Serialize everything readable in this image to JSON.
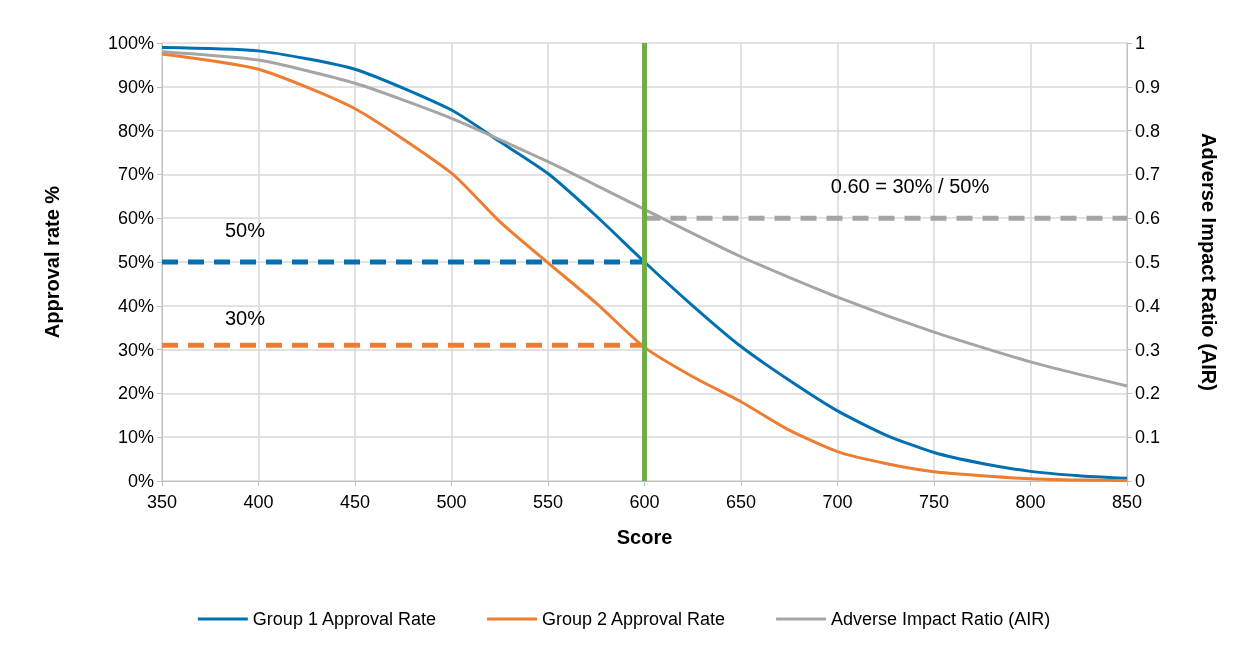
{
  "chart_data": {
    "type": "line",
    "xlabel": "Score",
    "ylabel": "Approval rate %",
    "y2label": "Adverse Impact Ratio (AIR)",
    "xlim": [
      350,
      850
    ],
    "xticks": [
      350,
      400,
      450,
      500,
      550,
      600,
      650,
      700,
      750,
      800,
      850
    ],
    "ylim": [
      0,
      100
    ],
    "yticks": [
      {
        "value": 0,
        "label": "0%"
      },
      {
        "value": 10,
        "label": "10%"
      },
      {
        "value": 20,
        "label": "20%"
      },
      {
        "value": 30,
        "label": "30%"
      },
      {
        "value": 40,
        "label": "40%"
      },
      {
        "value": 50,
        "label": "50%"
      },
      {
        "value": 60,
        "label": "60%"
      },
      {
        "value": 70,
        "label": "70%"
      },
      {
        "value": 80,
        "label": "80%"
      },
      {
        "value": 90,
        "label": "90%"
      },
      {
        "value": 100,
        "label": "100%"
      }
    ],
    "y2lim": [
      0,
      1
    ],
    "y2ticks": [
      0,
      0.1,
      0.2,
      0.3,
      0.4,
      0.5,
      0.6,
      0.7,
      0.8,
      0.9,
      1
    ],
    "grid": true,
    "legend": "bottom",
    "marker": "none",
    "line_style": "solid",
    "series": [
      {
        "name": "Group 1 Approval Rate",
        "color": "#0070b0",
        "x": [
          350,
          400,
          450,
          500,
          525,
          550,
          575,
          600,
          625,
          650,
          675,
          700,
          725,
          750,
          775,
          800,
          825,
          850
        ],
        "values": [
          99,
          98.2,
          94,
          84.7,
          77.5,
          70.2,
          60.5,
          50,
          40,
          30.7,
          23,
          16,
          10.5,
          6.5,
          4,
          2.2,
          1.2,
          0.6
        ]
      },
      {
        "name": "Group 2 Approval Rate",
        "color": "#ed7d31",
        "x": [
          350,
          400,
          450,
          500,
          525,
          550,
          575,
          600,
          625,
          650,
          675,
          700,
          725,
          750,
          775,
          800,
          825,
          850
        ],
        "values": [
          97.5,
          94,
          85,
          70.3,
          59.2,
          49.8,
          40.6,
          30.5,
          23.8,
          18.1,
          11.6,
          6.7,
          4,
          2.1,
          1.2,
          0.5,
          0.2,
          0.1
        ]
      },
      {
        "name": "Adverse Impact Ratio (AIR)",
        "color": "#a5a5a5",
        "axis": "y2",
        "x": [
          350,
          400,
          450,
          500,
          550,
          575,
          600,
          650,
          700,
          750,
          800,
          850
        ],
        "values": [
          0.98,
          0.961,
          0.908,
          0.828,
          0.729,
          0.675,
          0.62,
          0.512,
          0.42,
          0.34,
          0.272,
          0.217
        ]
      },
      {
        "color": "#0070b0",
        "line_style": "dashed",
        "x": [
          350,
          600
        ],
        "values": [
          50,
          50
        ]
      },
      {
        "color": "#ed7d31",
        "line_style": "dashed",
        "x": [
          350,
          600
        ],
        "values": [
          31,
          31
        ]
      },
      {
        "color": "#a5a5a5",
        "line_style": "dashed",
        "axis": "y2",
        "x": [
          600,
          850
        ],
        "values": [
          0.6,
          0.6
        ]
      }
    ],
    "ref_lines": [
      {
        "axis": "x",
        "value": 600,
        "color": "#70ad47"
      }
    ],
    "annotations": [
      "50%",
      "30%",
      "0.60 = 30% / 50%"
    ]
  }
}
